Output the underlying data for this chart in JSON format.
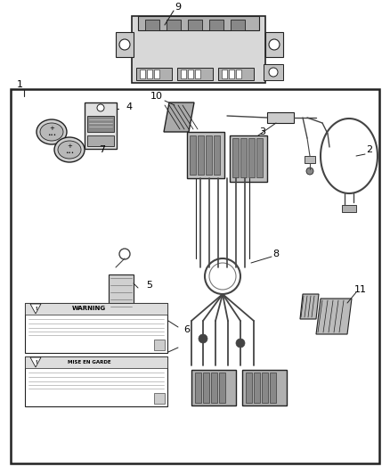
{
  "bg_color": "#ffffff",
  "box_color": "#222222",
  "part_color": "#444444",
  "light_part": "#777777",
  "lighter_part": "#aaaaaa",
  "fig_width": 4.38,
  "fig_height": 5.33,
  "dpi": 100
}
